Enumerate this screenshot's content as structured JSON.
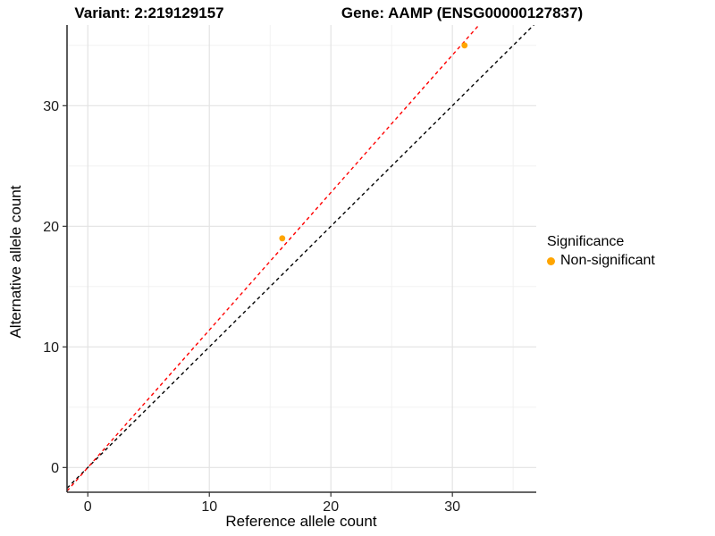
{
  "titles": {
    "variant": "Variant: 2:219129157",
    "gene": "Gene: AAMP (ENSG00000127837)"
  },
  "chart_data": {
    "type": "scatter",
    "title_left": "Variant: 2:219129157",
    "title_right": "Gene: AAMP (ENSG00000127837)",
    "xlabel": "Reference allele count",
    "ylabel": "Alternative allele count",
    "xlim": [
      -1.71,
      36.9
    ],
    "ylim": [
      -2.05,
      36.69
    ],
    "xticks": [
      0,
      10,
      20,
      30
    ],
    "yticks": [
      0,
      10,
      20,
      30
    ],
    "xticks_minor": [
      5,
      15,
      25,
      35
    ],
    "yticks_minor": [
      5,
      15,
      25,
      35
    ],
    "grid": "major+minor, light gray on white panel",
    "points": [
      {
        "x": 16,
        "y": 19,
        "series": "Non-significant"
      },
      {
        "x": 31,
        "y": 35,
        "series": "Non-significant"
      }
    ],
    "lines": [
      {
        "name": "identity-line",
        "slope": 1.0,
        "intercept": 0,
        "color": "#000000",
        "dashed": true
      },
      {
        "name": "fit-line",
        "slope": 1.14,
        "intercept": 0,
        "color": "#FF0000",
        "dashed": true
      }
    ],
    "legend": {
      "title": "Significance",
      "position": "right",
      "items": [
        {
          "label": "Non-significant",
          "color": "#FFA500"
        }
      ]
    },
    "colors": {
      "point": "#FFA500",
      "grid_major": "#E3E3E3",
      "grid_minor": "#F0F0F0",
      "axis_line": "#333333",
      "tick_mark": "#333333",
      "tick_label": "#1a1a1a",
      "background": "#FFFFFF"
    }
  }
}
